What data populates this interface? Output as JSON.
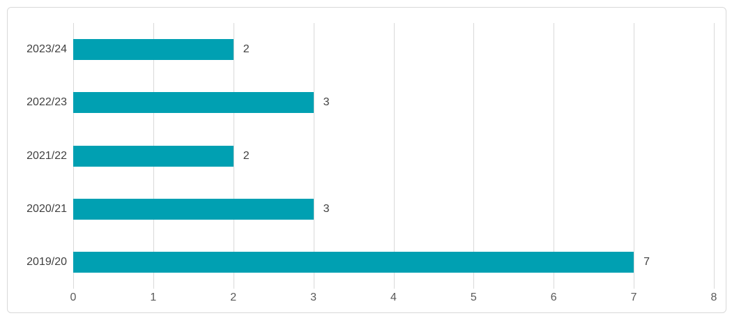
{
  "chart_data": {
    "type": "bar",
    "orientation": "horizontal",
    "title": "",
    "xlabel": "",
    "ylabel": "",
    "categories": [
      "2023/24",
      "2022/23",
      "2021/22",
      "2020/21",
      "2019/20"
    ],
    "values": [
      2,
      3,
      2,
      3,
      7
    ],
    "data_labels": [
      "2",
      "3",
      "2",
      "3",
      "7"
    ],
    "x_ticks": [
      0,
      1,
      2,
      3,
      4,
      5,
      6,
      7,
      8
    ],
    "x_tick_labels": [
      "0",
      "1",
      "2",
      "3",
      "4",
      "5",
      "6",
      "7",
      "8"
    ],
    "xlim": [
      0,
      8
    ],
    "grid": "vertical-only",
    "legend": "none",
    "colors": {
      "bar": "#00a0b2",
      "gridline": "#d9d9d9",
      "category_text": "#404040",
      "data_label_text": "#404040",
      "tick_text": "#595959",
      "frame_border": "#d9d9d9",
      "background": "#ffffff"
    }
  }
}
